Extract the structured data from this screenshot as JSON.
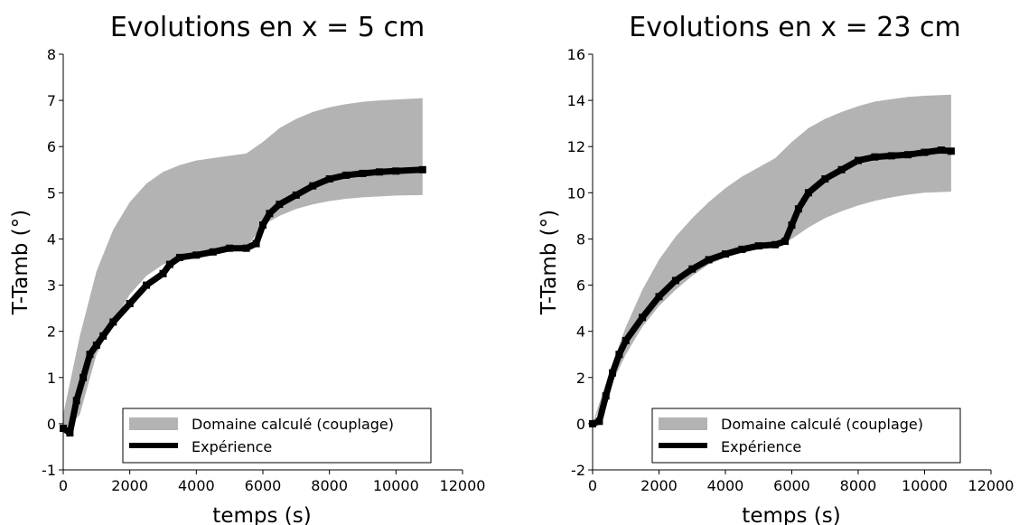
{
  "chart_data": [
    {
      "type": "area",
      "title": "Evolutions en x = 5 cm",
      "xlabel": "temps (s)",
      "ylabel": "T-Tamb (°)",
      "xlim": [
        0,
        12000
      ],
      "ylim": [
        -1,
        8
      ],
      "xticks": [
        "0",
        "2000",
        "4000",
        "6000",
        "8000",
        "10000",
        "12000"
      ],
      "yticks": [
        "-1",
        "0",
        "1",
        "2",
        "3",
        "4",
        "5",
        "6",
        "7",
        "8"
      ],
      "legend": {
        "position": "bottom-right",
        "band_label": "Domaine calculé (couplage)",
        "line_label": "Expérience"
      },
      "band": {
        "name": "Domaine calculé (couplage)",
        "x": [
          0,
          500,
          1000,
          1500,
          2000,
          2500,
          3000,
          3500,
          4000,
          4500,
          5000,
          5500,
          6000,
          6500,
          7000,
          7500,
          8000,
          8500,
          9000,
          9500,
          10000,
          10800
        ],
        "upper": [
          0.2,
          1.9,
          3.3,
          4.2,
          4.8,
          5.2,
          5.45,
          5.6,
          5.7,
          5.75,
          5.8,
          5.85,
          6.1,
          6.4,
          6.6,
          6.75,
          6.85,
          6.92,
          6.97,
          7.0,
          7.02,
          7.05
        ],
        "lower": [
          -0.2,
          0.2,
          1.5,
          2.2,
          2.8,
          3.2,
          3.45,
          3.55,
          3.6,
          3.7,
          3.75,
          3.8,
          4.3,
          4.5,
          4.65,
          4.75,
          4.82,
          4.87,
          4.9,
          4.92,
          4.94,
          4.95
        ]
      },
      "series": [
        {
          "name": "Expérience",
          "x": [
            0,
            200,
            400,
            600,
            800,
            1000,
            1200,
            1500,
            2000,
            2500,
            3000,
            3200,
            3500,
            4000,
            4500,
            5000,
            5500,
            5800,
            6000,
            6200,
            6500,
            7000,
            7500,
            8000,
            8500,
            9000,
            9500,
            10000,
            10800
          ],
          "y": [
            -0.1,
            -0.2,
            0.5,
            1.0,
            1.5,
            1.7,
            1.9,
            2.2,
            2.6,
            3.0,
            3.25,
            3.45,
            3.6,
            3.65,
            3.72,
            3.8,
            3.8,
            3.9,
            4.3,
            4.55,
            4.75,
            4.95,
            5.15,
            5.3,
            5.38,
            5.42,
            5.45,
            5.47,
            5.5
          ]
        }
      ]
    },
    {
      "type": "area",
      "title": "Evolutions en x = 23 cm",
      "xlabel": "temps (s)",
      "ylabel": "T-Tamb (°)",
      "xlim": [
        0,
        12000
      ],
      "ylim": [
        -2,
        16
      ],
      "xticks": [
        "0",
        "2000",
        "4000",
        "6000",
        "8000",
        "10000",
        "12000"
      ],
      "yticks": [
        "-2",
        "0",
        "2",
        "4",
        "6",
        "8",
        "10",
        "12",
        "14",
        "16"
      ],
      "legend": {
        "position": "bottom-right",
        "band_label": "Domaine calculé (couplage)",
        "line_label": "Expérience"
      },
      "band": {
        "name": "Domaine calculé (couplage)",
        "x": [
          0,
          500,
          1000,
          1500,
          2000,
          2500,
          3000,
          3500,
          4000,
          4500,
          5000,
          5500,
          6000,
          6500,
          7000,
          7500,
          8000,
          8500,
          9000,
          9500,
          10000,
          10800
        ],
        "upper": [
          0,
          2.2,
          4.2,
          5.8,
          7.1,
          8.1,
          8.9,
          9.6,
          10.2,
          10.7,
          11.1,
          11.5,
          12.2,
          12.8,
          13.2,
          13.5,
          13.75,
          13.95,
          14.05,
          14.15,
          14.2,
          14.25
        ],
        "lower": [
          0,
          1.5,
          3.0,
          4.2,
          5.1,
          5.8,
          6.4,
          6.9,
          7.2,
          7.4,
          7.55,
          7.65,
          8.0,
          8.5,
          8.9,
          9.2,
          9.45,
          9.65,
          9.8,
          9.92,
          10.0,
          10.05
        ]
      },
      "series": [
        {
          "name": "Expérience",
          "x": [
            0,
            200,
            400,
            600,
            800,
            1000,
            1500,
            2000,
            2500,
            3000,
            3500,
            4000,
            4500,
            5000,
            5500,
            5800,
            6000,
            6200,
            6500,
            7000,
            7500,
            8000,
            8500,
            9000,
            9500,
            10000,
            10500,
            10800
          ],
          "y": [
            0,
            0.1,
            1.2,
            2.2,
            3.0,
            3.6,
            4.6,
            5.5,
            6.2,
            6.7,
            7.1,
            7.35,
            7.55,
            7.7,
            7.75,
            7.9,
            8.6,
            9.3,
            10.0,
            10.6,
            11.0,
            11.4,
            11.55,
            11.6,
            11.65,
            11.75,
            11.85,
            11.8
          ]
        }
      ]
    }
  ]
}
